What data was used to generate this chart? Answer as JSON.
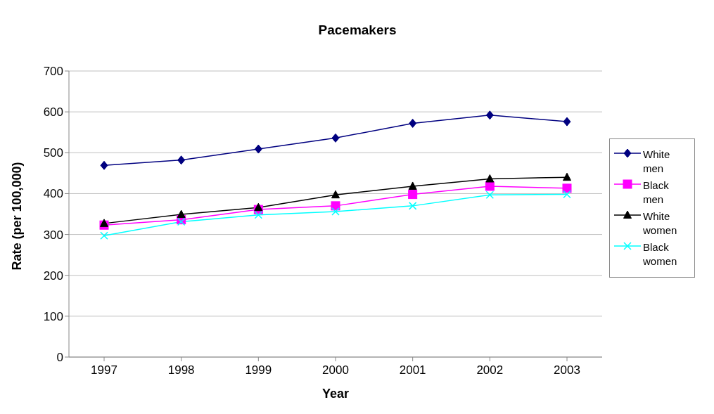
{
  "chart_data": {
    "type": "line",
    "title": "Pacemakers",
    "xlabel": "Year",
    "ylabel": "Rate (per 100,000)",
    "categories": [
      "1997",
      "1998",
      "1999",
      "2000",
      "2001",
      "2002",
      "2003"
    ],
    "series": [
      {
        "name": "White men",
        "color": "#000080",
        "marker": "diamond",
        "values": [
          469,
          482,
          509,
          536,
          572,
          592,
          576
        ]
      },
      {
        "name": "Black men",
        "color": "#ff00ff",
        "marker": "square",
        "values": [
          323,
          336,
          361,
          370,
          398,
          418,
          413
        ]
      },
      {
        "name": "White women",
        "color": "#000000",
        "marker": "triangle",
        "values": [
          327,
          349,
          366,
          397,
          418,
          436,
          440
        ]
      },
      {
        "name": "Black women",
        "color": "#00ffff",
        "marker": "cross",
        "values": [
          297,
          331,
          348,
          356,
          370,
          397,
          398
        ]
      }
    ],
    "ylim": [
      0,
      700
    ],
    "yticks": [
      0,
      100,
      200,
      300,
      400,
      500,
      600,
      700
    ],
    "grid": "y",
    "legend": "right"
  }
}
